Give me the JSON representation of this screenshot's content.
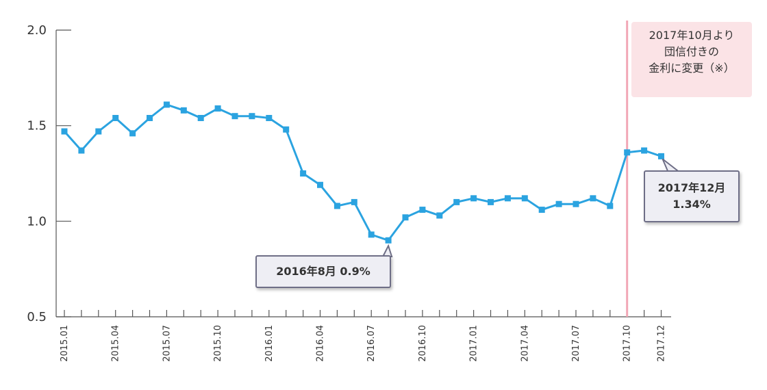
{
  "chart_data": {
    "type": "line",
    "x": [
      "2015.01",
      "2015.02",
      "2015.03",
      "2015.04",
      "2015.05",
      "2015.06",
      "2015.07",
      "2015.08",
      "2015.09",
      "2015.10",
      "2015.11",
      "2015.12",
      "2016.01",
      "2016.02",
      "2016.03",
      "2016.04",
      "2016.05",
      "2016.06",
      "2016.07",
      "2016.08",
      "2016.09",
      "2016.10",
      "2016.11",
      "2016.12",
      "2017.01",
      "2017.02",
      "2017.03",
      "2017.04",
      "2017.05",
      "2017.06",
      "2017.07",
      "2017.08",
      "2017.09",
      "2017.10",
      "2017.11",
      "2017.12"
    ],
    "series": [
      {
        "values": [
          1.47,
          1.37,
          1.47,
          1.54,
          1.46,
          1.54,
          1.61,
          1.58,
          1.54,
          1.59,
          1.55,
          1.55,
          1.54,
          1.48,
          1.25,
          1.19,
          1.08,
          1.1,
          0.93,
          0.9,
          1.02,
          1.06,
          1.03,
          1.1,
          1.12,
          1.1,
          1.12,
          1.12,
          1.06,
          1.09,
          1.09,
          1.12,
          1.08,
          1.36,
          1.37,
          1.34
        ],
        "color": "#2ba3e0"
      }
    ],
    "ylim": [
      0.5,
      2.0
    ],
    "yticks": [
      "0.5",
      "1.0",
      "1.5",
      "2.0"
    ],
    "xtick_labels": [
      "2015.01",
      "2015.04",
      "2015.07",
      "2015.10",
      "2016.01",
      "2016.04",
      "2016.07",
      "2016.10",
      "2017.01",
      "2017.04",
      "2017.07",
      "2017.10",
      "2017.12"
    ],
    "vertical_marker": {
      "x": "2017.10",
      "color": "#f2a7b6"
    },
    "annotations": [
      {
        "id": "min",
        "x": "2016.08",
        "value": 0.9,
        "text": "2016年8月 0.9%"
      },
      {
        "id": "last",
        "x": "2017.12",
        "value": 1.34,
        "lines": [
          "2017年12月",
          "1.34%"
        ]
      }
    ],
    "note": {
      "lines": [
        "2017年10月より",
        "団信付きの",
        "金利に変更（※）"
      ],
      "color": "#fbe3e6"
    },
    "grid": false,
    "title": "",
    "xlabel": "",
    "ylabel": ""
  }
}
